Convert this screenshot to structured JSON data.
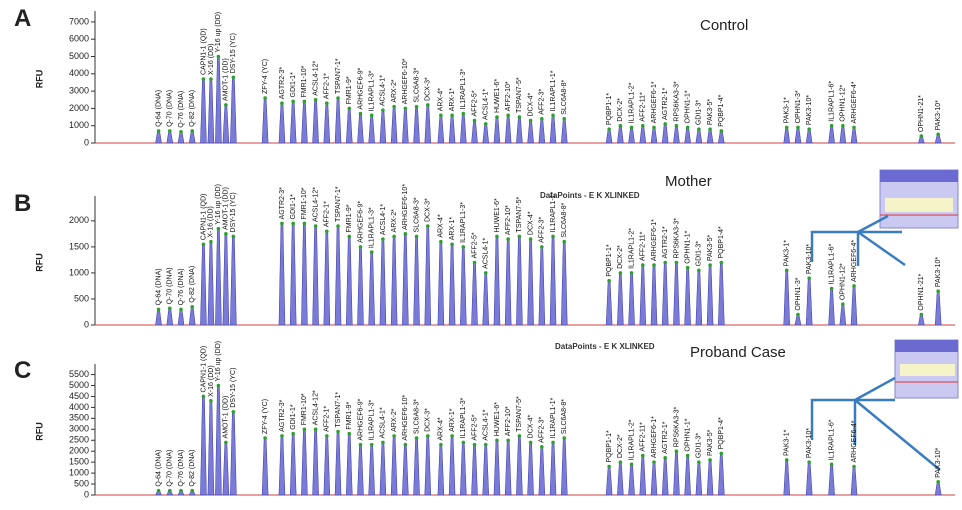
{
  "chart_data": [
    {
      "type": "peaks",
      "panel": "A",
      "title": "Control",
      "ylabel": "RFU",
      "color": "#7a7ad8",
      "xlim": [
        30,
        490
      ],
      "ylim": [
        0,
        7400
      ],
      "yticks": [
        0,
        1000,
        2000,
        3000,
        4000,
        5000,
        6000,
        7000
      ],
      "x": [
        64,
        70,
        76,
        82,
        88,
        92,
        96,
        100,
        104,
        121,
        130,
        136,
        142,
        148,
        154,
        160,
        166,
        172,
        178,
        184,
        190,
        196,
        202,
        208,
        215,
        221,
        227,
        233,
        239,
        245,
        251,
        257,
        263,
        269,
        275,
        281,
        305,
        311,
        317,
        323,
        329,
        335,
        341,
        347,
        353,
        359,
        365,
        400,
        406,
        412,
        424,
        430,
        436,
        472,
        481
      ],
      "peak_labels": [
        "Q-64 (DNA)",
        "Q-70 (DNA)",
        "Q-76 (DNA)",
        "Q-82 (DNA)",
        "CAPN1-1 (QD)",
        "X-16 (DD)",
        "Y-16 up (DD)",
        "AMOT-1 (DD)",
        "DSY-15 (YC)",
        "ZFY-4 (YC)",
        "AGTR2-3*",
        "GDI1-1*",
        "FMR1-10*",
        "ACSL4-12*",
        "AFF2-1*",
        "TSPAN7-1*",
        "FMR1-9*",
        "ARHGEF6-9*",
        "IL1RAPL1-3*",
        "ACSL4-1*",
        "ARX-2*",
        "ARHGEF6-10*",
        "SLC6A8-3*",
        "DCX-3*",
        "ARX-4*",
        "ARX-1*",
        "IL1RAPL1-3*",
        "AFF2-5*",
        "ACSL4-1*",
        "HUWE1-6*",
        "AFF2-10*",
        "TSPAN7-5*",
        "DCX-4*",
        "AFF2-3*",
        "IL1RAPL1-1*",
        "SLC6A8-8*",
        "PQBP1-1*",
        "DCX-2*",
        "IL1RAPL1-2*",
        "AFF2-11*",
        "ARHGEF6-1*",
        "AGTR2-1*",
        "RPS6KA3-3*",
        "OPHN1-1*",
        "GDI1-3*",
        "PAK3-5*",
        "PQBP1-4*",
        "PAK3-1*",
        "OPHN1-3*",
        "PAK3-10*",
        "IL1RAPL1-6*",
        "OPHN1-12*",
        "ARHGEF6-4*",
        "OPHN1-21*",
        "PAK3-10*"
      ],
      "values": [
        700,
        700,
        650,
        700,
        3700,
        3700,
        5000,
        2200,
        3800,
        2600,
        2300,
        2400,
        2400,
        2500,
        2300,
        2600,
        2000,
        1700,
        1600,
        1900,
        2100,
        2000,
        2100,
        2200,
        1600,
        1600,
        1700,
        1300,
        1100,
        1500,
        1600,
        1500,
        1300,
        1400,
        1600,
        1400,
        800,
        1000,
        900,
        1000,
        900,
        1100,
        1000,
        900,
        800,
        800,
        700,
        900,
        900,
        800,
        1000,
        1000,
        900,
        400,
        500
      ]
    },
    {
      "type": "peaks",
      "panel": "B",
      "title": "Mother",
      "subtitle": "DataPoints - E K XLINKED",
      "ylabel": "RFU",
      "color": "#7a7ad8",
      "xlim": [
        30,
        490
      ],
      "ylim": [
        0,
        2400
      ],
      "yticks": [
        0,
        500,
        1000,
        1500,
        2000
      ],
      "x": [
        64,
        70,
        76,
        82,
        88,
        92,
        96,
        100,
        104,
        130,
        136,
        142,
        148,
        154,
        160,
        166,
        172,
        178,
        184,
        190,
        196,
        202,
        208,
        215,
        221,
        227,
        233,
        239,
        245,
        251,
        257,
        263,
        269,
        275,
        281,
        305,
        311,
        317,
        323,
        329,
        335,
        341,
        347,
        353,
        359,
        365,
        400,
        406,
        412,
        424,
        430,
        436,
        472,
        481
      ],
      "peak_labels": [
        "Q-64 (DNA)",
        "Q-70 (DNA)",
        "Q-76 (DNA)",
        "Q-82 (DNA)",
        "CAPN1-1 (QD)",
        "X-16 (DD)",
        "Y-16 up (DD)",
        "AMOT-1 (DD)",
        "DSY-15 (YC)",
        "AGTR2-3*",
        "GDI1-1*",
        "FMR1-10*",
        "ACSL4-12*",
        "AFF2-1*",
        "TSPAN7-1*",
        "FMR1-9*",
        "ARHGEF6-9*",
        "IL1RAPL1-3*",
        "ACSL4-1*",
        "ARX-2*",
        "ARHGEF6-10*",
        "SLC6A8-3*",
        "DCX-3*",
        "ARX-4*",
        "ARX-1*",
        "IL1RAPL1-3*",
        "AFF2-5*",
        "ACSL4-1*",
        "HUWE1-6*",
        "AFF2-10*",
        "TSPAN7-5*",
        "DCX-4*",
        "AFF2-3*",
        "IL1RAPL1-1*",
        "SLC6A8-8*",
        "PQBP1-1*",
        "DCX-2*",
        "IL1RAPL1-2*",
        "AFF2-11*",
        "ARHGEF6-1*",
        "AGTR2-1*",
        "RPS6KA3-3*",
        "OPHN1-1*",
        "GDI1-3*",
        "PAK3-5*",
        "PQBP1-4*",
        "PAK3-1*",
        "OPHN1-3*",
        "PAK3-10*",
        "IL1RAPL1-6*",
        "OPHN1-12*",
        "ARHGEF6-4*",
        "OPHN1-21*",
        "PAK3-10*"
      ],
      "values": [
        300,
        320,
        300,
        350,
        1550,
        1600,
        1850,
        1750,
        1700,
        1950,
        1950,
        1950,
        1900,
        1800,
        1900,
        1700,
        1500,
        1400,
        1650,
        1700,
        1750,
        1700,
        1900,
        1600,
        1550,
        1500,
        1200,
        1000,
        1700,
        1650,
        1700,
        1650,
        1500,
        1700,
        1600,
        850,
        1000,
        1000,
        1150,
        1150,
        1200,
        1200,
        1100,
        1050,
        1150,
        1200,
        1050,
        200,
        900,
        700,
        400,
        750,
        200,
        650
      ]
    },
    {
      "type": "peaks",
      "panel": "C",
      "title": "Proband Case",
      "subtitle": "DataPoints - E K XLINKED",
      "ylabel": "RFU",
      "color": "#7a7ad8",
      "xlim": [
        30,
        490
      ],
      "ylim": [
        0,
        5800
      ],
      "yticks": [
        0,
        500,
        1000,
        1500,
        2000,
        2500,
        3000,
        3500,
        4000,
        4500,
        5000,
        5500
      ],
      "x": [
        64,
        70,
        76,
        82,
        88,
        92,
        96,
        100,
        104,
        121,
        130,
        136,
        142,
        148,
        154,
        160,
        166,
        172,
        178,
        184,
        190,
        196,
        202,
        208,
        215,
        221,
        227,
        233,
        239,
        245,
        251,
        257,
        263,
        269,
        275,
        281,
        305,
        311,
        317,
        323,
        329,
        335,
        341,
        347,
        353,
        359,
        365,
        400,
        412,
        424,
        436,
        481
      ],
      "peak_labels": [
        "Q-64 (DNA)",
        "Q-70 (DNA)",
        "Q-76 (DNA)",
        "Q-82 (DNA)",
        "CAPN1-1 (QD)",
        "X-16 (DD)",
        "Y-16 up (DD)",
        "AMOT-1 (DD)",
        "DSY-15 (YC)",
        "ZFY-4 (YC)",
        "AGTR2-3*",
        "GDI1-1*",
        "FMR1-10*",
        "ACSL4-12*",
        "AFF2-1*",
        "TSPAN7-1*",
        "FMR1-9*",
        "ARHGEF6-9*",
        "IL1RAPL1-3*",
        "ACSL4-1*",
        "ARX-2*",
        "ARHGEF6-10*",
        "SLC6A8-3*",
        "DCX-3*",
        "ARX-4*",
        "ARX-1*",
        "IL1RAPL1-3*",
        "AFF2-5*",
        "ACSL4-1*",
        "HUWE1-6*",
        "AFF2-10*",
        "TSPAN7-5*",
        "DCX-4*",
        "AFF2-3*",
        "IL1RAPL1-1*",
        "SLC6A8-8*",
        "PQBP1-1*",
        "DCX-2*",
        "IL1RAPL1-2*",
        "AFF2-11*",
        "ARHGEF6-1*",
        "AGTR2-1*",
        "RPS6KA3-3*",
        "OPHN1-1*",
        "GDI1-3*",
        "PAK3-5*",
        "PQBP1-4*",
        "PAK3-1*",
        "PAK3-10*",
        "IL1RAPL1-6*",
        "ARHGEF6-4*",
        "PAK3-10*"
      ],
      "values": [
        200,
        200,
        200,
        200,
        4500,
        4300,
        5000,
        2400,
        3800,
        2600,
        2700,
        2800,
        3000,
        3000,
        2700,
        2900,
        2800,
        2300,
        2300,
        2400,
        2700,
        2300,
        2600,
        2700,
        2300,
        2700,
        2400,
        2300,
        2300,
        2500,
        2500,
        2700,
        2400,
        2200,
        2400,
        2600,
        1300,
        1500,
        1400,
        1800,
        1500,
        1700,
        2000,
        1800,
        1500,
        1600,
        1900,
        1600,
        1500,
        1400,
        1300,
        600
      ]
    }
  ]
}
